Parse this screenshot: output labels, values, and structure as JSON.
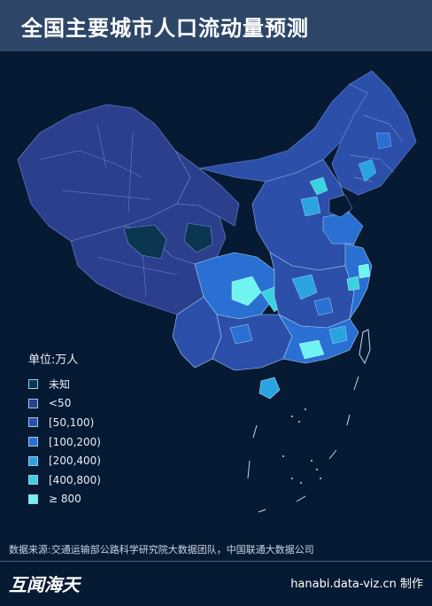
{
  "title": "全国主要城市人口流动量预测",
  "legend": {
    "title": "单位:万人",
    "items": [
      {
        "label": "未知",
        "color": "#0b3651"
      },
      {
        "label": "<50",
        "color": "#2b3f8c"
      },
      {
        "label": "[50,100)",
        "color": "#2c4fa9"
      },
      {
        "label": "[100,200)",
        "color": "#2a6fd2"
      },
      {
        "label": "[200,400)",
        "color": "#2aa3e0"
      },
      {
        "label": "[400,800)",
        "color": "#3ad2de"
      },
      {
        "label": "≥ 800",
        "color": "#6ff4f2"
      }
    ]
  },
  "footer": {
    "source": "数据来源:交通运输部公路科学研究院大数据团队，中国联通大数据公司",
    "brand": "互闻海天",
    "credit": "hanabi.data-viz.cn 制作"
  }
}
